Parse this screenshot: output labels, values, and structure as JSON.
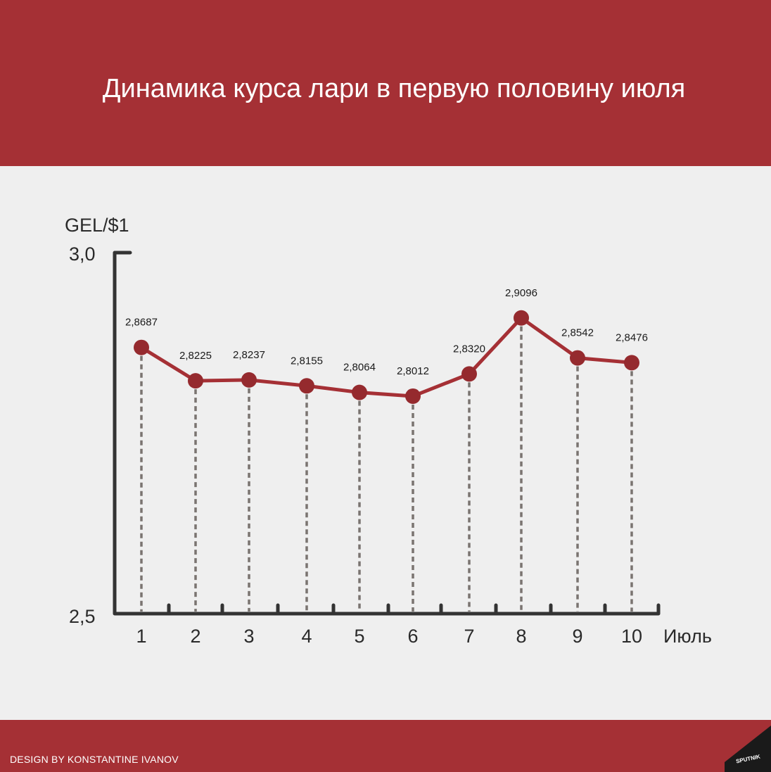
{
  "header": {
    "title": "Динамика курса лари в первую половину июля"
  },
  "footer": {
    "credit": "DESIGN BY KONSTANTINE IVANOV",
    "logo_text": "SPUTNIK"
  },
  "colors": {
    "header_bg": "#a53035",
    "line": "#a53035",
    "marker": "#952a2e",
    "axis": "#333333",
    "dotted": "#7a7470",
    "background": "#efefef"
  },
  "chart_data": {
    "type": "line",
    "ylabel": "GEL/$1",
    "xlabel": "Июль",
    "ylim": [
      2.5,
      3.0
    ],
    "y_ticks": [
      "3,0",
      "2,5"
    ],
    "categories": [
      "1",
      "2",
      "3",
      "4",
      "5",
      "6",
      "7",
      "8",
      "9",
      "10"
    ],
    "values": [
      2.8687,
      2.8225,
      2.8237,
      2.8155,
      2.8064,
      2.8012,
      2.832,
      2.9096,
      2.8542,
      2.8476
    ],
    "data_labels": [
      "2,8687",
      "2,8225",
      "2,8237",
      "2,8155",
      "2,8064",
      "2,8012",
      "2,8320",
      "2,9096",
      "2,8542",
      "2,8476"
    ],
    "grid": false
  }
}
